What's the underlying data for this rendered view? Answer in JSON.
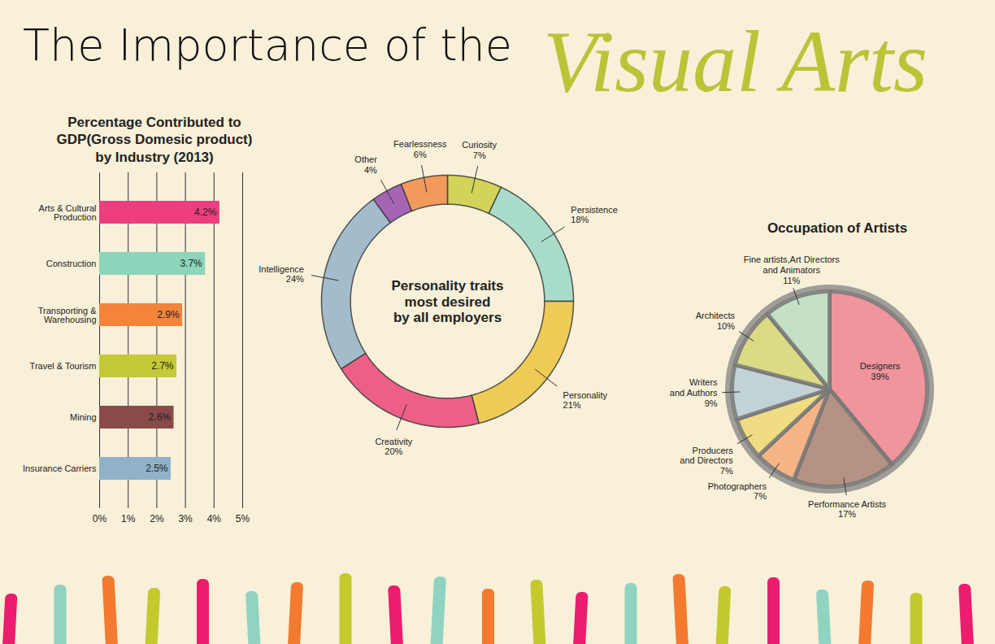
{
  "title": "The Importance of the Visual Arts",
  "chart_data": [
    {
      "type": "bar",
      "title": "Percentage Contributed to\nGDP(Gross Domesic product)\nby Industry (2013)",
      "orientation": "horizontal",
      "categories": [
        "Arts & Cultural\nProduction",
        "Construction",
        "Transporting &\nWarehousing",
        "Travel & Tourism",
        "Mining",
        "Insurance Carriers"
      ],
      "values": [
        4.2,
        3.7,
        2.9,
        2.7,
        2.6,
        2.5
      ],
      "value_labels": [
        "4.2%",
        "3.7%",
        "2.9%",
        "2.7%",
        "2.6%",
        "2.5%"
      ],
      "colors": [
        "#ec3d7e",
        "#8ed4bb",
        "#f3843a",
        "#c4c937",
        "#8b4a4a",
        "#8fb2c9"
      ],
      "xlim": [
        0,
        5
      ],
      "xticks": [
        {
          "value": 0,
          "label": "0%"
        },
        {
          "value": 1,
          "label": "1%"
        },
        {
          "value": 2,
          "label": "2%"
        },
        {
          "value": 3,
          "label": "3%"
        },
        {
          "value": 4,
          "label": "4%"
        },
        {
          "value": 5,
          "label": "5%"
        }
      ],
      "grid": true,
      "data_labels": true
    },
    {
      "type": "donut",
      "title": "Personality traits\nmost desired\nby all employers",
      "categories": [
        "Curiosity",
        "Persistence",
        "Personality",
        "Creativity",
        "Intelligence",
        "Other",
        "Fearlessness"
      ],
      "values": [
        7,
        18,
        21,
        20,
        24,
        4,
        6
      ],
      "value_labels": [
        "7%",
        "18%",
        "21%",
        "20%",
        "24%",
        "4%",
        "6%"
      ],
      "colors": [
        "#d3d35a",
        "#a8dcc9",
        "#edcb54",
        "#ee5f86",
        "#a2bccb",
        "#a665b4",
        "#f29a5c"
      ],
      "data_labels": true
    },
    {
      "type": "pie",
      "title": "Occupation of Artists",
      "categories": [
        "Designers",
        "Performance Artists",
        "Photographers",
        "Producers\nand Directors",
        "Writers\nand Authors",
        "Architects",
        "Fine artists,Art Directors\nand Animators"
      ],
      "values": [
        39,
        17,
        7,
        7,
        9,
        10,
        11
      ],
      "value_labels": [
        "39%",
        "17%",
        "7%",
        "7%",
        "9%",
        "10%",
        "11%"
      ],
      "colors": [
        "#f0959c",
        "#b59284",
        "#f6b486",
        "#f0dc82",
        "#c2d2d6",
        "#dbda85",
        "#c4e0c6"
      ],
      "data_labels": true
    }
  ]
}
